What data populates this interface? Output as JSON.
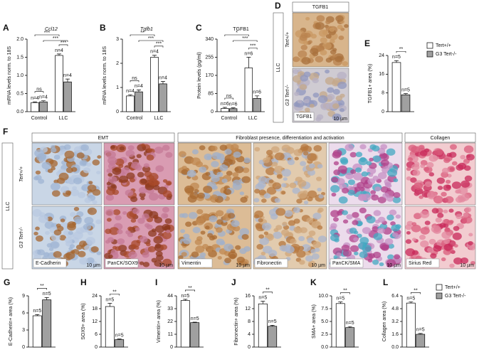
{
  "chart_data": [
    {
      "panel": "A",
      "type": "bar",
      "title": "Ccl12",
      "title_italic": true,
      "y_label": "mRNA levels norm. to 18S",
      "categories": [
        "Control",
        "LLC"
      ],
      "series": [
        {
          "color": "#ffffff",
          "values": [
            0.25,
            1.55
          ],
          "errors": [
            0.02,
            0.04
          ],
          "n_labels": [
            "n=4",
            "n=4"
          ]
        },
        {
          "color": "#a0a0a0",
          "values": [
            0.27,
            0.82
          ],
          "errors": [
            0.03,
            0.08
          ],
          "n_labels": [
            "n=4",
            "n=4"
          ]
        }
      ],
      "ylim": [
        0,
        2
      ],
      "yticks": [
        {
          "value": 0,
          "label": "0.0"
        },
        {
          "value": 0.5,
          "label": "0.5"
        },
        {
          "value": 1,
          "label": "1.0"
        },
        {
          "value": 1.5,
          "label": "1.5"
        },
        {
          "value": 2,
          "label": "2.0"
        }
      ],
      "significance": [
        {
          "label": "ns",
          "bars": [
            0,
            1
          ]
        },
        {
          "label": "***",
          "bars": [
            2,
            3
          ]
        },
        {
          "label": "***",
          "bars": [
            0,
            2
          ]
        },
        {
          "label": "***",
          "bars": [
            1,
            3
          ]
        }
      ]
    },
    {
      "panel": "B",
      "type": "bar",
      "title": "Tgfb1",
      "title_italic": true,
      "y_label": "mRNA levels norm. to 18S",
      "categories": [
        "Control",
        "LLC"
      ],
      "series": [
        {
          "color": "#ffffff",
          "values": [
            0.65,
            2.25
          ],
          "errors": [
            0.05,
            0.08
          ],
          "n_labels": [
            "n=4",
            "n=4"
          ]
        },
        {
          "color": "#a0a0a0",
          "values": [
            0.82,
            1.15
          ],
          "errors": [
            0.08,
            0.1
          ],
          "n_labels": [
            "n=4",
            "n=4"
          ]
        }
      ],
      "ylim": [
        0,
        3
      ],
      "yticks": [
        0,
        1,
        2,
        3
      ],
      "significance": [
        {
          "label": "ns",
          "bars": [
            0,
            1
          ]
        },
        {
          "label": "***",
          "bars": [
            2,
            3
          ]
        },
        {
          "label": "**",
          "bars": [
            0,
            2
          ]
        },
        {
          "label": "***",
          "bars": [
            1,
            3
          ]
        }
      ]
    },
    {
      "panel": "C",
      "type": "bar",
      "title": "TGFB1",
      "title_italic": false,
      "y_label": "Protein levels (pg/ml)",
      "categories": [
        "Control",
        "LLC"
      ],
      "series": [
        {
          "color": "#ffffff",
          "values": [
            15,
            205
          ],
          "errors": [
            5,
            50
          ],
          "n_labels": [
            "n=6",
            "n=6"
          ]
        },
        {
          "color": "#a0a0a0",
          "values": [
            14,
            62
          ],
          "errors": [
            4,
            12
          ],
          "n_labels": [
            "n=6",
            "n=6"
          ]
        }
      ],
      "ylim": [
        0,
        340
      ],
      "yticks": [
        0,
        85,
        170,
        255,
        340
      ],
      "significance": [
        {
          "label": "ns",
          "bars": [
            0,
            1
          ]
        },
        {
          "label": "***",
          "bars": [
            2,
            3
          ]
        },
        {
          "label": "*",
          "bars": [
            0,
            2
          ]
        },
        {
          "label": "***",
          "bars": [
            1,
            3
          ]
        }
      ]
    },
    {
      "panel": "E",
      "type": "bar",
      "y_label": "TGFB1+ area (%)",
      "legend": true,
      "series": [
        {
          "name": "Tert+/+",
          "color": "#ffffff",
          "values": [
            21
          ],
          "errors": [
            0.8
          ],
          "n_labels": [
            "n=5"
          ]
        },
        {
          "name": "G3 Tert-/-",
          "color": "#a0a0a0",
          "values": [
            7.2
          ],
          "errors": [
            0.5
          ],
          "n_labels": [
            "n=5"
          ]
        }
      ],
      "ylim": [
        0,
        24
      ],
      "yticks": [
        0,
        8,
        16,
        24
      ],
      "significance": [
        {
          "label": "**",
          "bars": [
            0,
            1
          ]
        }
      ]
    },
    {
      "panel": "G",
      "type": "bar",
      "y_label": "E-Cadherin+ area (%)",
      "series": [
        {
          "color": "#ffffff",
          "values": [
            5.5
          ],
          "errors": [
            0.2
          ],
          "n_labels": [
            "n=5"
          ]
        },
        {
          "color": "#a0a0a0",
          "values": [
            8.3
          ],
          "errors": [
            0.4
          ],
          "n_labels": [
            "n=5"
          ]
        }
      ],
      "ylim": [
        0,
        9
      ],
      "yticks": [
        0,
        3,
        6,
        9
      ],
      "significance": [
        {
          "label": "**",
          "bars": [
            0,
            1
          ]
        }
      ]
    },
    {
      "panel": "H",
      "type": "bar",
      "y_label": "SOX9+ area (%)",
      "series": [
        {
          "color": "#ffffff",
          "values": [
            19
          ],
          "errors": [
            1.5
          ],
          "n_labels": [
            "n=5"
          ]
        },
        {
          "color": "#a0a0a0",
          "values": [
            3.5
          ],
          "errors": [
            0.3
          ],
          "n_labels": [
            "n=5"
          ]
        }
      ],
      "ylim": [
        0,
        24
      ],
      "yticks": [
        0,
        6,
        12,
        18,
        24
      ],
      "significance": [
        {
          "label": "**",
          "bars": [
            0,
            1
          ]
        }
      ]
    },
    {
      "panel": "I",
      "type": "bar",
      "y_label": "Vimentin+ area (%)",
      "series": [
        {
          "color": "#ffffff",
          "values": [
            40
          ],
          "errors": [
            1
          ],
          "n_labels": [
            "n=5"
          ]
        },
        {
          "color": "#a0a0a0",
          "values": [
            21
          ],
          "errors": [
            0.4
          ],
          "n_labels": [
            "n=5"
          ]
        }
      ],
      "ylim": [
        0,
        44
      ],
      "yticks": [
        0,
        11,
        22,
        33,
        44
      ],
      "significance": [
        {
          "label": "**",
          "bars": [
            0,
            1
          ]
        }
      ]
    },
    {
      "panel": "J",
      "type": "bar",
      "y_label": "Fibronectin+ area (%)",
      "series": [
        {
          "color": "#ffffff",
          "values": [
            13.5
          ],
          "errors": [
            0.8
          ],
          "n_labels": [
            "n=5"
          ]
        },
        {
          "color": "#a0a0a0",
          "values": [
            6.5
          ],
          "errors": [
            0.3
          ],
          "n_labels": [
            "n=5"
          ]
        }
      ],
      "ylim": [
        0,
        16
      ],
      "yticks": [
        0,
        4,
        8,
        12,
        16
      ],
      "significance": [
        {
          "label": "**",
          "bars": [
            0,
            1
          ]
        }
      ]
    },
    {
      "panel": "K",
      "type": "bar",
      "y_label": "SMA+ area (%)",
      "series": [
        {
          "color": "#ffffff",
          "values": [
            8.5
          ],
          "errors": [
            0.3
          ],
          "n_labels": [
            "n=5"
          ]
        },
        {
          "color": "#a0a0a0",
          "values": [
            3.8
          ],
          "errors": [
            0.2
          ],
          "n_labels": [
            "n=5"
          ]
        }
      ],
      "ylim": [
        0,
        10
      ],
      "yticks": [
        {
          "value": 0,
          "label": "0.0"
        },
        {
          "value": 2.5,
          "label": "2.5"
        },
        {
          "value": 5,
          "label": "5.0"
        },
        {
          "value": 7.5,
          "label": "7.5"
        },
        {
          "value": 10,
          "label": "10.0"
        }
      ],
      "significance": [
        {
          "label": "**",
          "bars": [
            0,
            1
          ]
        }
      ]
    },
    {
      "panel": "L",
      "type": "bar",
      "y_label": "Collagen area (%)",
      "legend": true,
      "series": [
        {
          "name": "Tert+/+",
          "color": "#ffffff",
          "values": [
            5.5
          ],
          "errors": [
            0.15
          ],
          "n_labels": [
            "n=5"
          ]
        },
        {
          "name": "G3 Tert-/-",
          "color": "#a0a0a0",
          "values": [
            1.6
          ],
          "errors": [
            0.1
          ],
          "n_labels": [
            "n=5"
          ]
        }
      ],
      "ylim": [
        0,
        6.4
      ],
      "yticks": [
        {
          "value": 0,
          "label": "0.0"
        },
        {
          "value": 1.6,
          "label": "1.6"
        },
        {
          "value": 3.2,
          "label": "3.2"
        },
        {
          "value": 4.8,
          "label": "4.8"
        },
        {
          "value": 6.4,
          "label": "6.4"
        }
      ],
      "significance": [
        {
          "label": "**",
          "bars": [
            0,
            1
          ]
        }
      ]
    }
  ],
  "panel_d": {
    "panel": "D",
    "header": "TGFB1",
    "group": "LLC",
    "rows": [
      "Tert+/+",
      "G3 Tert-/-"
    ],
    "caption": "TGFB1",
    "scale": "10 µm"
  },
  "panel_f": {
    "panel": "F",
    "headers": [
      "EMT",
      "Fibroblast presence, differentiation and activation",
      "Collagen"
    ],
    "group": "LLC",
    "rows": [
      "Tert+/+",
      "G3 Tert-/-"
    ],
    "captions": [
      "E-Cadherin",
      "PanCK/SOX9",
      "Vimentin",
      "Fibronectin",
      "PanCK/SMA",
      "Sirius Red"
    ],
    "scale": "10 µm"
  }
}
